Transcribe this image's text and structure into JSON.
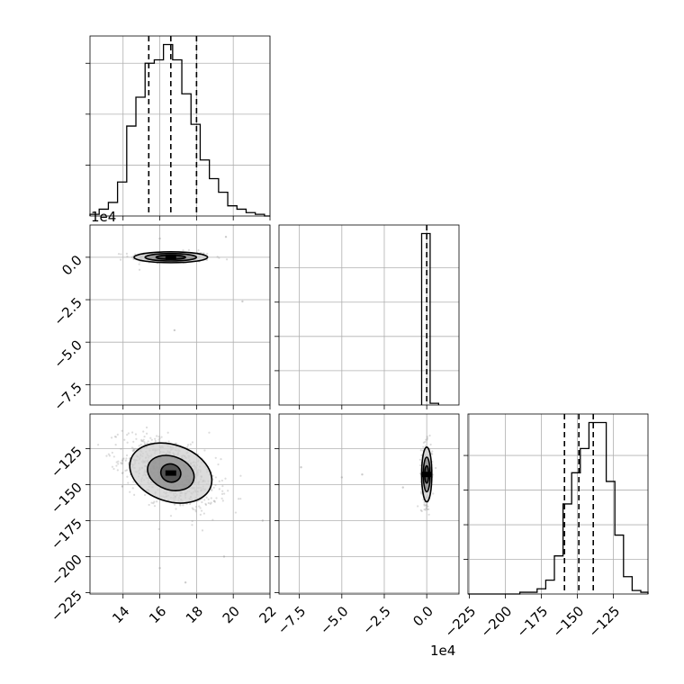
{
  "chart_data": {
    "type": "corner",
    "title": "",
    "parameters": [
      "",
      "",
      ""
    ],
    "offset_labels": {
      "row1_y": "1e4",
      "col1_x": "1e4"
    },
    "grid": true,
    "colors": {
      "line": "#000000",
      "grid": "#b0b0b0",
      "scatter": "#9a9a9a",
      "fill": "#000000"
    },
    "axes": {
      "p0": {
        "range": [
          12.2,
          22.0
        ],
        "ticks": [
          14,
          16,
          18,
          20,
          22
        ],
        "tick_labels": [
          "14",
          "16",
          "18",
          "20",
          "22"
        ]
      },
      "p1": {
        "range": [
          -8.7,
          1.9
        ],
        "ticks": [
          -7.5,
          -5.0,
          -2.5,
          0.0
        ],
        "tick_labels": [
          "−7.5",
          "−5.0",
          "−2.5",
          "0.0"
        ]
      },
      "p2": {
        "range": [
          -226,
          -101
        ],
        "ticks": [
          -225,
          -200,
          -175,
          -150,
          -125
        ],
        "tick_labels": [
          "−225",
          "−200",
          "−175",
          "−150",
          "−125"
        ]
      }
    },
    "hist_p0": {
      "edges": [
        12.2,
        12.7,
        13.2,
        13.7,
        14.2,
        14.7,
        15.2,
        15.7,
        16.2,
        16.7,
        17.2,
        17.7,
        18.2,
        18.7,
        19.2,
        19.7,
        20.2,
        20.7,
        21.2,
        21.7,
        22.0
      ],
      "counts": [
        1,
        4,
        8,
        20,
        53,
        70,
        90,
        92,
        101,
        92,
        72,
        54,
        33,
        22,
        14,
        6,
        4,
        2,
        1,
        0
      ],
      "quantiles": [
        15.4,
        16.6,
        18.0
      ],
      "y_ticks": [
        30,
        60,
        90
      ]
    },
    "hist_p1": {
      "edges": [
        -0.3,
        0.2,
        0.7
      ],
      "counts": [
        100,
        1
      ],
      "quantiles": [
        0.0
      ],
      "y_ticks": [
        20,
        40,
        60,
        80
      ]
    },
    "hist_p2": {
      "edges": [
        -226,
        -220,
        -214,
        -208,
        -202,
        -196,
        -190,
        -184,
        -178,
        -172,
        -166,
        -160,
        -154,
        -148,
        -142,
        -136,
        -130,
        -124,
        -118,
        -112,
        -106,
        -101
      ],
      "counts": [
        0,
        0,
        0,
        0,
        0,
        0,
        1,
        1,
        3,
        8,
        22,
        52,
        70,
        84,
        99,
        99,
        65,
        34,
        10,
        2,
        1
      ],
      "quantiles": [
        -159,
        -149,
        -139
      ],
      "y_ticks": [
        20,
        40,
        60,
        80
      ]
    },
    "joint_p0_p1": {
      "center": [
        16.6,
        0.0
      ],
      "contour_halfwidths": [
        [
          0.8,
          0.12
        ],
        [
          1.4,
          0.22
        ],
        [
          2.0,
          0.32
        ]
      ],
      "outliers": [
        [
          19.6,
          1.2
        ],
        [
          16.8,
          -4.3
        ],
        [
          16.0,
          1.1
        ],
        [
          20.5,
          -2.6
        ]
      ]
    },
    "joint_p1_p2": {
      "center": [
        0.0,
        -143
      ],
      "contour_halfwidths": [
        [
          0.12,
          6
        ],
        [
          0.2,
          12
        ],
        [
          0.3,
          19
        ]
      ],
      "outliers": [
        [
          -7.4,
          -138
        ],
        [
          -3.8,
          -143
        ],
        [
          -1.4,
          -152
        ],
        [
          -5.0,
          -145
        ]
      ]
    },
    "joint_p0_p2": {
      "center": [
        16.6,
        -142
      ],
      "correlation": -0.45,
      "contour_halfwidths": [
        [
          0.55,
          7
        ],
        [
          1.3,
          13
        ],
        [
          2.3,
          22
        ]
      ],
      "outliers": [
        [
          16.0,
          -208
        ],
        [
          17.4,
          -218
        ],
        [
          19.5,
          -200
        ],
        [
          21.6,
          -175
        ]
      ]
    }
  }
}
